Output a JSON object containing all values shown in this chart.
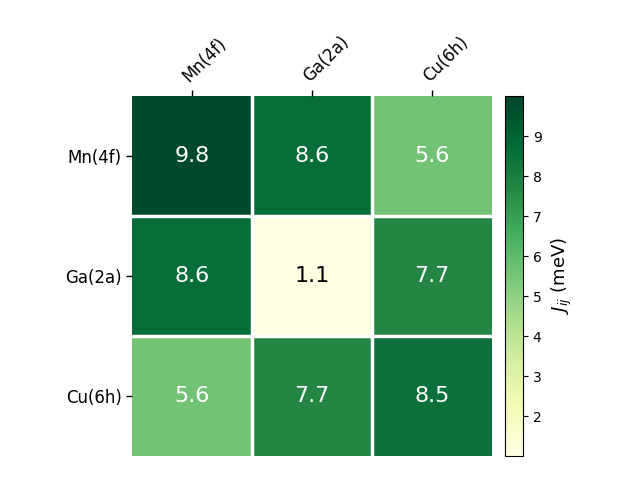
{
  "matrix": [
    [
      9.8,
      8.6,
      5.6
    ],
    [
      8.6,
      1.1,
      7.7
    ],
    [
      5.6,
      7.7,
      8.5
    ]
  ],
  "labels": [
    "Mn(4f)",
    "Ga(2a)",
    "Cu(6h)"
  ],
  "colorbar_label": "$J_{ij}$ (meV)",
  "vmin": 1.0,
  "vmax": 10.0,
  "colormap": "YlGn",
  "text_color_threshold": 4.0,
  "figsize": [
    6.4,
    4.8
  ],
  "dpi": 100,
  "background_color": "#ffffff",
  "cell_text_fontsize": 16,
  "tick_label_fontsize": 12,
  "colorbar_tick_fontsize": 10,
  "colorbar_label_fontsize": 13,
  "colorbar_ticks": [
    2,
    3,
    4,
    5,
    6,
    7,
    8,
    9
  ],
  "grid_linewidth": 2.5
}
